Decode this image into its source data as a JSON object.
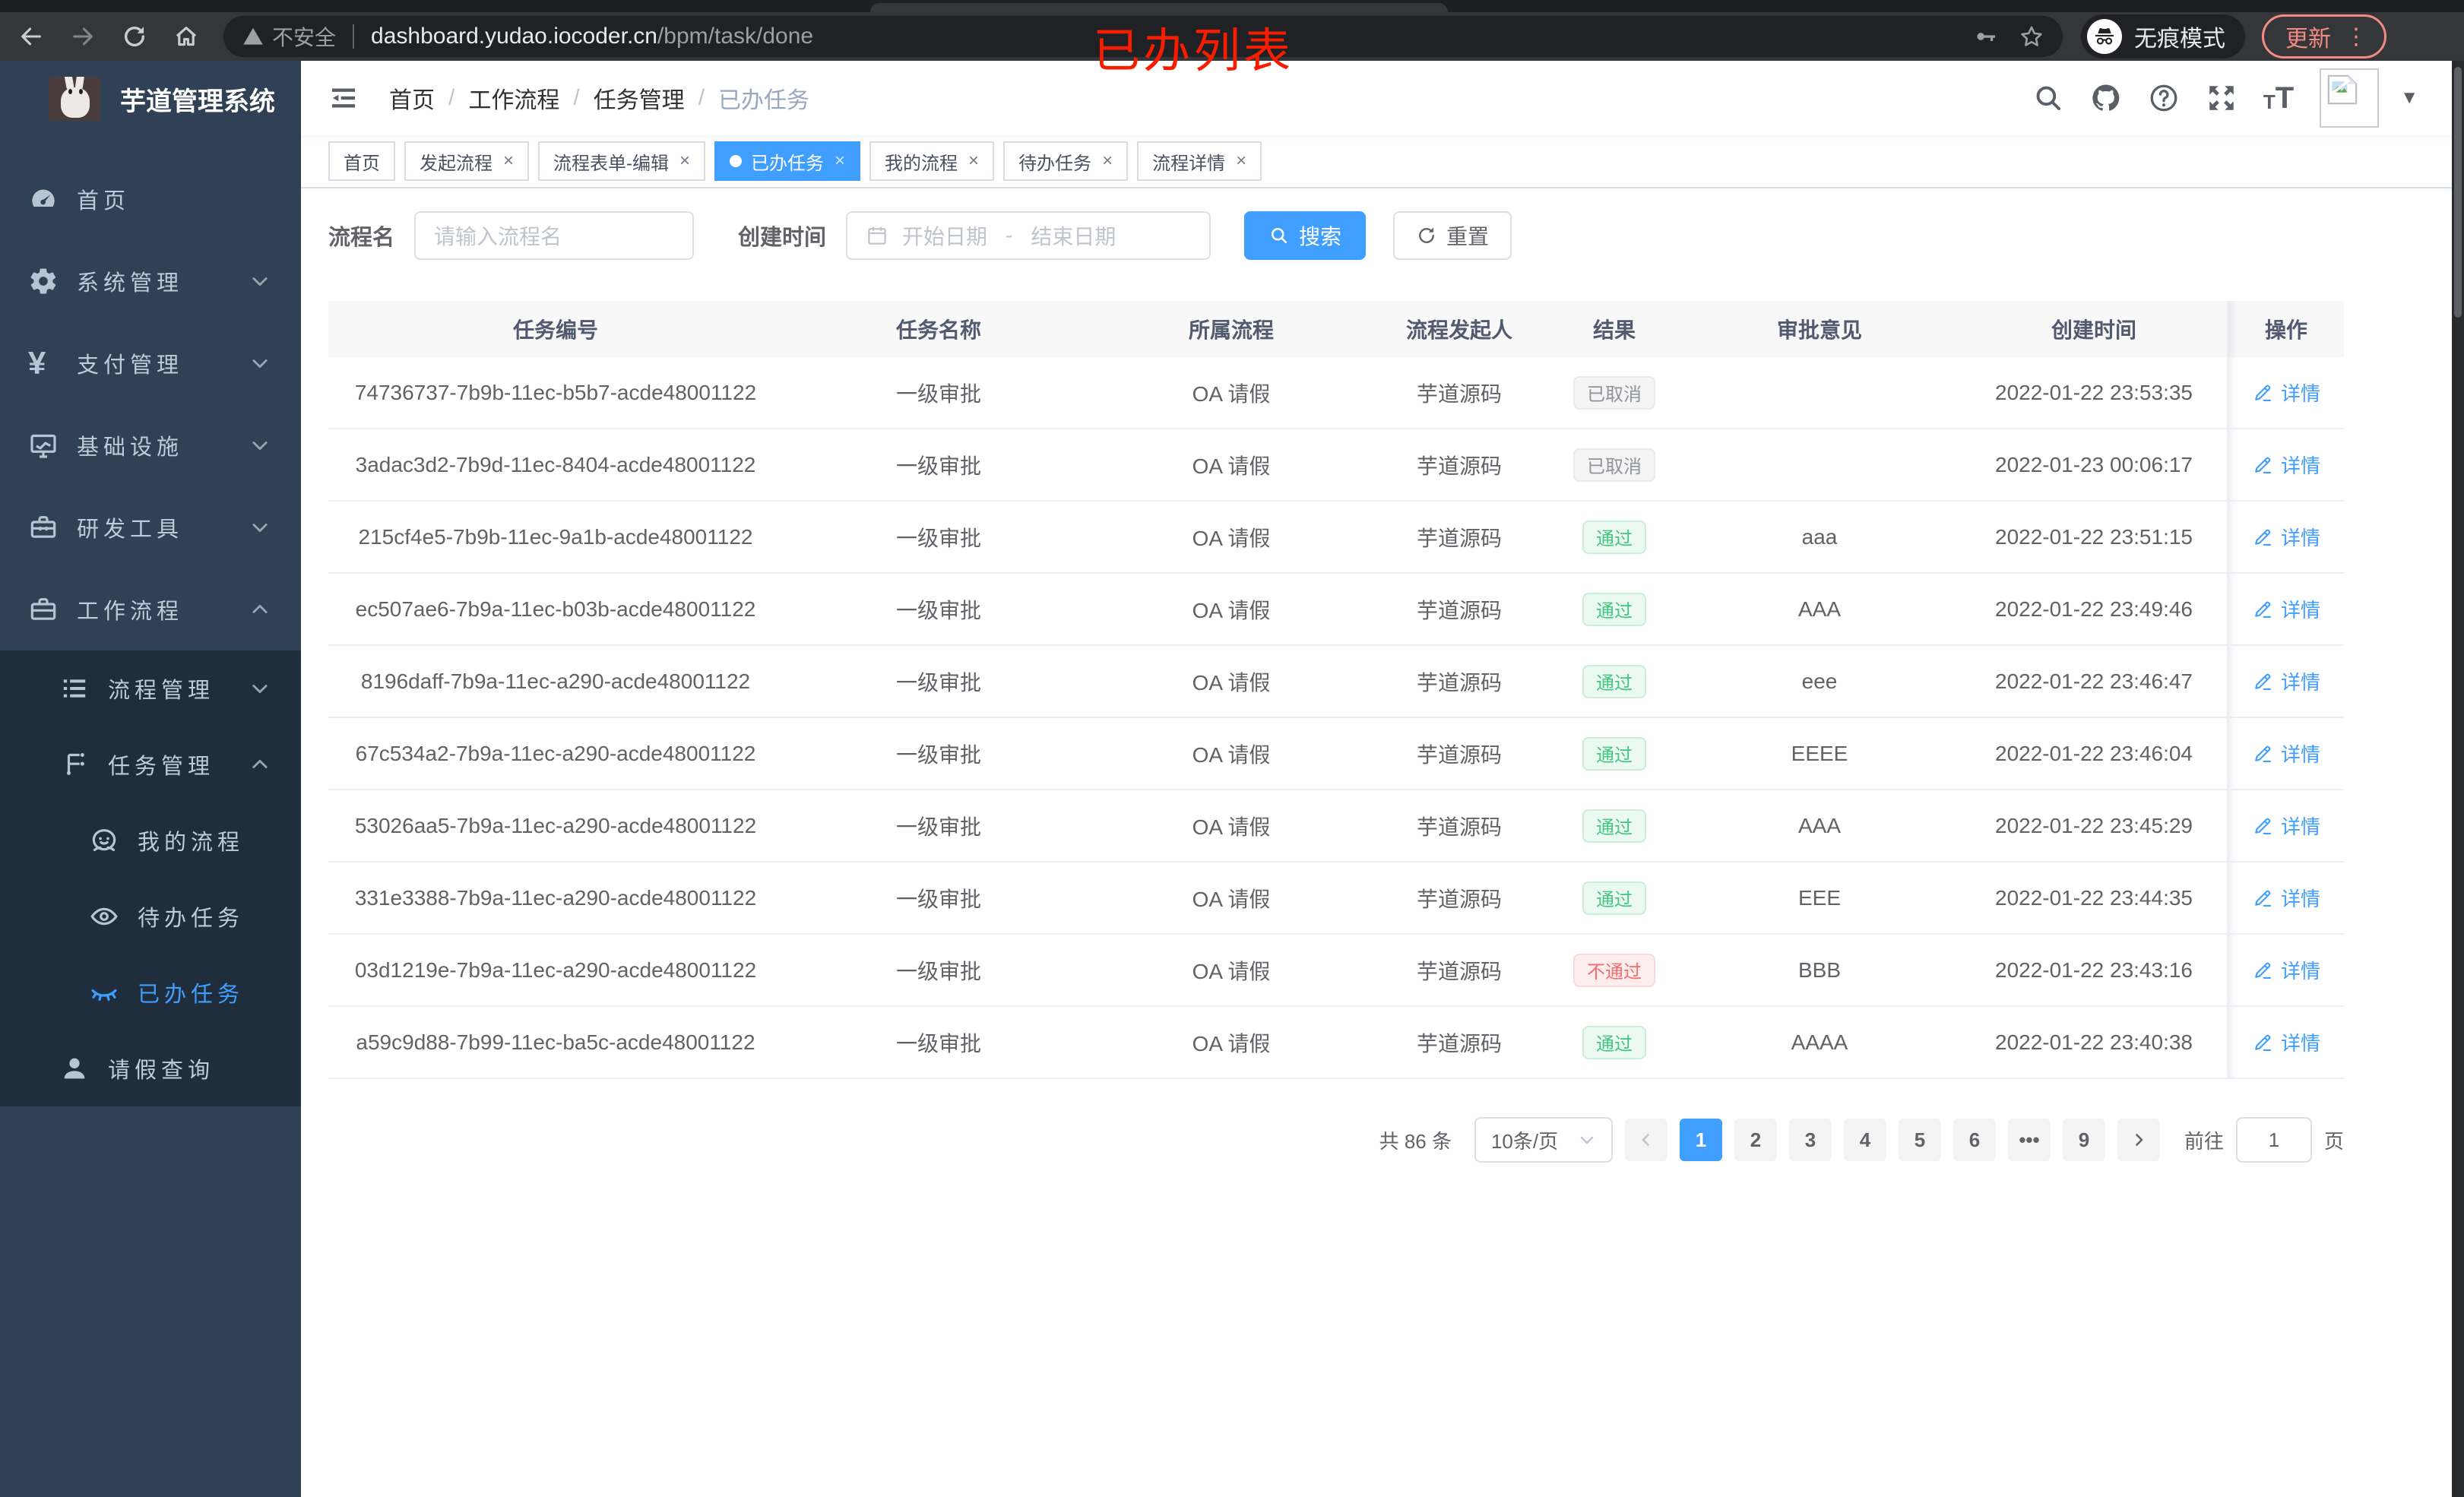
{
  "browser": {
    "security_label": "不安全",
    "url_host": "dashboard.yudao.iocoder.cn",
    "url_path": "/bpm/task/done",
    "incognito_label": "无痕模式",
    "update_label": "更新"
  },
  "annotation": {
    "text": "已办列表",
    "color": "#f81d01"
  },
  "sidebar": {
    "title": "芋道管理系统",
    "logo_icon": "rabbit-logo",
    "items": [
      {
        "label": "首页",
        "icon": "dashboard-icon",
        "level": 1,
        "chevron": "",
        "active": false,
        "in_submenu": false
      },
      {
        "label": "系统管理",
        "icon": "gear-icon",
        "level": 1,
        "chevron": "down",
        "active": false,
        "in_submenu": false
      },
      {
        "label": "支付管理",
        "icon": "yen-icon",
        "level": 1,
        "chevron": "down",
        "active": false,
        "in_submenu": false
      },
      {
        "label": "基础设施",
        "icon": "monitor-icon",
        "level": 1,
        "chevron": "down",
        "active": false,
        "in_submenu": false
      },
      {
        "label": "研发工具",
        "icon": "toolbox-icon",
        "level": 1,
        "chevron": "down",
        "active": false,
        "in_submenu": false
      },
      {
        "label": "工作流程",
        "icon": "briefcase-icon",
        "level": 1,
        "chevron": "up",
        "active": false,
        "in_submenu": false
      },
      {
        "label": "流程管理",
        "icon": "list-icon",
        "level": 2,
        "chevron": "down",
        "active": false,
        "in_submenu": true
      },
      {
        "label": "任务管理",
        "icon": "flow-icon",
        "level": 2,
        "chevron": "up",
        "active": false,
        "in_submenu": true
      },
      {
        "label": "我的流程",
        "icon": "face-icon",
        "level": 3,
        "chevron": "",
        "active": false,
        "in_submenu": true
      },
      {
        "label": "待办任务",
        "icon": "eye-icon",
        "level": 3,
        "chevron": "",
        "active": false,
        "in_submenu": true
      },
      {
        "label": "已办任务",
        "icon": "eye-closed-icon",
        "level": 3,
        "chevron": "",
        "active": true,
        "in_submenu": true
      },
      {
        "label": "请假查询",
        "icon": "user-icon",
        "level": 2,
        "chevron": "",
        "active": false,
        "in_submenu": true
      }
    ]
  },
  "navbar": {
    "breadcrumb": [
      "首页",
      "工作流程",
      "任务管理",
      "已办任务"
    ],
    "right_icons": [
      "search-icon",
      "github-icon",
      "help-icon",
      "fullscreen-icon",
      "font-size-icon",
      "avatar",
      "caret-down-icon"
    ]
  },
  "tags": [
    {
      "label": "首页",
      "closable": false,
      "active": false
    },
    {
      "label": "发起流程",
      "closable": true,
      "active": false
    },
    {
      "label": "流程表单-编辑",
      "closable": true,
      "active": false
    },
    {
      "label": "已办任务",
      "closable": true,
      "active": true
    },
    {
      "label": "我的流程",
      "closable": true,
      "active": false
    },
    {
      "label": "待办任务",
      "closable": true,
      "active": false
    },
    {
      "label": "流程详情",
      "closable": true,
      "active": false
    }
  ],
  "filters": {
    "name_label": "流程名",
    "name_placeholder": "请输入流程名",
    "time_label": "创建时间",
    "start_placeholder": "开始日期",
    "range_separator": "-",
    "end_placeholder": "结束日期",
    "search_label": "搜索",
    "reset_label": "重置"
  },
  "table": {
    "columns": [
      "任务编号",
      "任务名称",
      "所属流程",
      "流程发起人",
      "结果",
      "审批意见",
      "创建时间",
      "操作"
    ],
    "detail_label": "详情",
    "rows": [
      {
        "id": "74736737-7b9b-11ec-b5b7-acde48001122",
        "name": "一级审批",
        "process": "OA 请假",
        "starter": "芋道源码",
        "result": "已取消",
        "result_type": "info",
        "comment": "",
        "time": "2022-01-22 23:53:35"
      },
      {
        "id": "3adac3d2-7b9d-11ec-8404-acde48001122",
        "name": "一级审批",
        "process": "OA 请假",
        "starter": "芋道源码",
        "result": "已取消",
        "result_type": "info",
        "comment": "",
        "time": "2022-01-23 00:06:17"
      },
      {
        "id": "215cf4e5-7b9b-11ec-9a1b-acde48001122",
        "name": "一级审批",
        "process": "OA 请假",
        "starter": "芋道源码",
        "result": "通过",
        "result_type": "success",
        "comment": "aaa",
        "time": "2022-01-22 23:51:15"
      },
      {
        "id": "ec507ae6-7b9a-11ec-b03b-acde48001122",
        "name": "一级审批",
        "process": "OA 请假",
        "starter": "芋道源码",
        "result": "通过",
        "result_type": "success",
        "comment": "AAA",
        "time": "2022-01-22 23:49:46"
      },
      {
        "id": "8196daff-7b9a-11ec-a290-acde48001122",
        "name": "一级审批",
        "process": "OA 请假",
        "starter": "芋道源码",
        "result": "通过",
        "result_type": "success",
        "comment": "eee",
        "time": "2022-01-22 23:46:47"
      },
      {
        "id": "67c534a2-7b9a-11ec-a290-acde48001122",
        "name": "一级审批",
        "process": "OA 请假",
        "starter": "芋道源码",
        "result": "通过",
        "result_type": "success",
        "comment": "EEEE",
        "time": "2022-01-22 23:46:04"
      },
      {
        "id": "53026aa5-7b9a-11ec-a290-acde48001122",
        "name": "一级审批",
        "process": "OA 请假",
        "starter": "芋道源码",
        "result": "通过",
        "result_type": "success",
        "comment": "AAA",
        "time": "2022-01-22 23:45:29"
      },
      {
        "id": "331e3388-7b9a-11ec-a290-acde48001122",
        "name": "一级审批",
        "process": "OA 请假",
        "starter": "芋道源码",
        "result": "通过",
        "result_type": "success",
        "comment": "EEE",
        "time": "2022-01-22 23:44:35"
      },
      {
        "id": "03d1219e-7b9a-11ec-a290-acde48001122",
        "name": "一级审批",
        "process": "OA 请假",
        "starter": "芋道源码",
        "result": "不通过",
        "result_type": "danger",
        "comment": "BBB",
        "time": "2022-01-22 23:43:16"
      },
      {
        "id": "a59c9d88-7b99-11ec-ba5c-acde48001122",
        "name": "一级审批",
        "process": "OA 请假",
        "starter": "芋道源码",
        "result": "通过",
        "result_type": "success",
        "comment": "AAAA",
        "time": "2022-01-22 23:40:38"
      }
    ]
  },
  "pagination": {
    "total": "共 86 条",
    "page_size": "10条/页",
    "pages": [
      "1",
      "2",
      "3",
      "4",
      "5",
      "6",
      "...",
      "9"
    ],
    "active_page": "1",
    "jump_prefix": "前往",
    "jump_value": "1",
    "jump_suffix": "页"
  },
  "colors": {
    "primary": "#409eff",
    "success": "#42c780",
    "danger": "#f56c6c",
    "info": "#909399"
  }
}
